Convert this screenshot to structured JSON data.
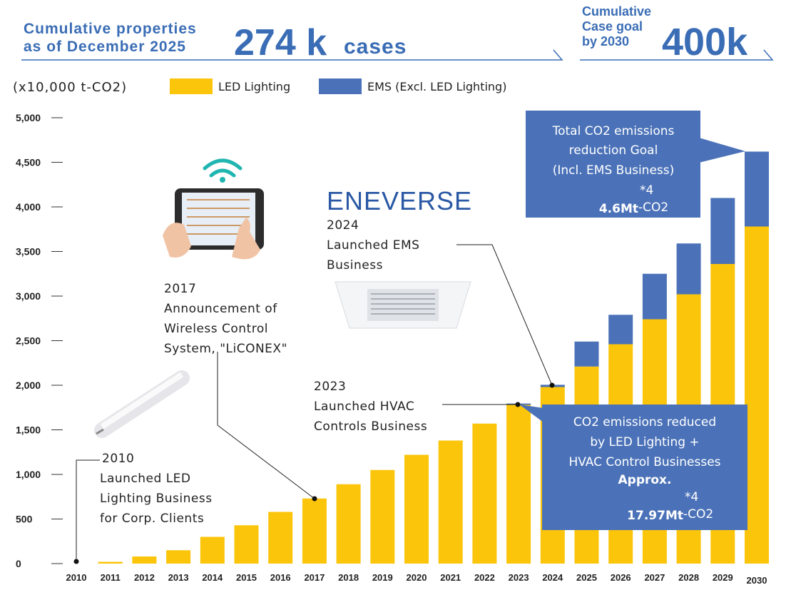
{
  "chart_data": {
    "type": "bar",
    "stacked": true,
    "header": {
      "label": [
        "Cumulative properties",
        "as of December 2025"
      ],
      "value": "274 k",
      "unit": "cases"
    },
    "goal": {
      "label": [
        "Cumulative",
        "Case goal",
        "by 2030"
      ],
      "value": "400k"
    },
    "y_unit": "(x10,000 t-CO2)",
    "categories": [
      "2010",
      "2011",
      "2012",
      "2013",
      "2014",
      "2015",
      "2016",
      "2017",
      "2018",
      "2019",
      "2020",
      "2021",
      "2022",
      "2023",
      "2024",
      "2025",
      "2026",
      "2027",
      "2028",
      "2029",
      "2030"
    ],
    "series": [
      {
        "name": "LED Lighting",
        "color": "#fbc50b",
        "values": [
          0,
          20,
          80,
          150,
          300,
          430,
          580,
          730,
          890,
          1050,
          1220,
          1380,
          1570,
          1780,
          1980,
          2210,
          2460,
          2740,
          3020,
          3360,
          3780
        ]
      },
      {
        "name": "EMS (Excl. LED Lighting)",
        "color": "#4b72b8",
        "values": [
          0,
          0,
          0,
          0,
          0,
          0,
          0,
          0,
          0,
          0,
          0,
          0,
          0,
          15,
          25,
          280,
          330,
          510,
          570,
          740,
          840
        ]
      }
    ],
    "ylim": [
      0,
      5000
    ],
    "yticks": [
      0,
      500,
      {
        "value": 1000,
        "label": "1,000"
      },
      {
        "value": 1500,
        "label": "1,500"
      },
      {
        "value": 2000,
        "label": "2,000"
      },
      {
        "value": 2500,
        "label": "2,500"
      },
      {
        "value": 3000,
        "label": "3,000"
      },
      {
        "value": 3500,
        "label": "3,500"
      },
      {
        "value": 4000,
        "label": "4,000"
      },
      {
        "value": 4500,
        "label": "4,500"
      },
      {
        "value": 5000,
        "label": "5,000"
      }
    ],
    "logo": "ENEVERSE",
    "milestones": [
      {
        "year": "2010",
        "lines": [
          "Launched LED",
          "Lighting Business",
          "for Corp. Clients"
        ]
      },
      {
        "year": "2017",
        "lines": [
          "Announcement of",
          "Wireless Control",
          "System, \"LiCONEX\""
        ]
      },
      {
        "year": "2023",
        "lines": [
          "Launched HVAC",
          "Controls Business"
        ]
      },
      {
        "year": "2024",
        "lines": [
          "Launched EMS",
          "Business"
        ]
      }
    ],
    "callouts": [
      {
        "lines": [
          "Total CO2 emissions",
          "reduction Goal",
          "(Incl. EMS Business)"
        ],
        "value": "4.6Mt",
        "note": "*4",
        "unit": "-CO2"
      },
      {
        "lines": [
          "CO2 emissions reduced",
          "by LED Lighting +",
          "HVAC Control Businesses",
          "Approx."
        ],
        "value": "17.97Mt",
        "note": "*4",
        "unit": "-CO2"
      }
    ]
  }
}
